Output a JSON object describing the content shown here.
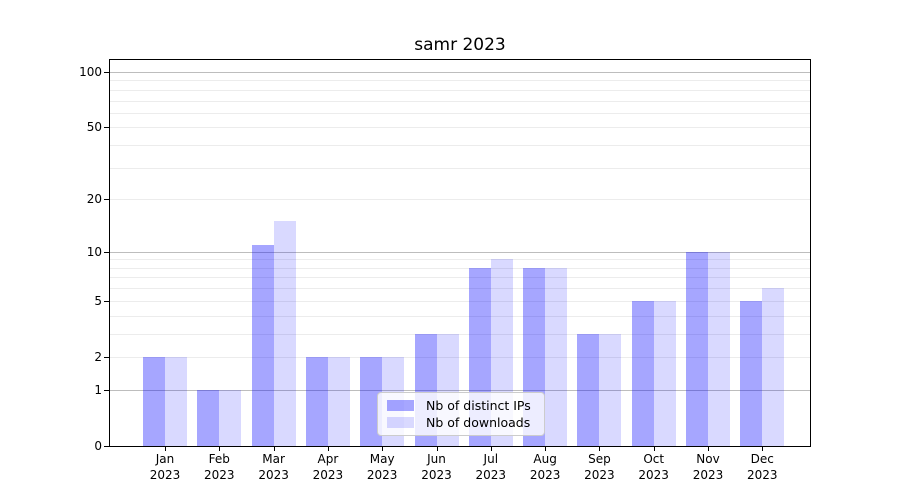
{
  "title": "samr 2023",
  "legend": {
    "items": [
      {
        "label": "Nb of distinct IPs"
      },
      {
        "label": "Nb of downloads"
      }
    ]
  },
  "colors": {
    "bar_distinct_ips": "rgba(0,0,255,0.35)",
    "bar_downloads": "rgba(0,0,255,0.15)",
    "major_grid": "#bdbdbd",
    "minor_grid": "#ececec",
    "spine": "#000000"
  },
  "chart_data": {
    "type": "bar",
    "title": "samr 2023",
    "xlabel": "",
    "ylabel": "",
    "yscale": "log10(1+y)",
    "grid": true,
    "legend_position": "lower center",
    "categories": [
      "Jan 2023",
      "Feb 2023",
      "Mar 2023",
      "Apr 2023",
      "May 2023",
      "Jun 2023",
      "Jul 2023",
      "Aug 2023",
      "Sep 2023",
      "Oct 2023",
      "Nov 2023",
      "Dec 2023"
    ],
    "series": [
      {
        "name": "Nb of distinct IPs",
        "color": "rgba(0,0,255,0.35)",
        "values": [
          2,
          1,
          11,
          2,
          2,
          3,
          8,
          8,
          3,
          5,
          10,
          5
        ]
      },
      {
        "name": "Nb of downloads",
        "color": "rgba(0,0,255,0.15)",
        "values": [
          2,
          1,
          15,
          2,
          2,
          3,
          9,
          8,
          3,
          5,
          10,
          6
        ]
      }
    ],
    "y_tick_labels": [
      0,
      1,
      2,
      5,
      10,
      20,
      50,
      100
    ],
    "y_major_gridlines": [
      1,
      10,
      100
    ],
    "y_minor_gridlines": [
      2,
      3,
      4,
      5,
      6,
      7,
      8,
      9,
      20,
      30,
      40,
      50,
      60,
      70,
      80,
      90
    ],
    "ylim": [
      0,
      116
    ]
  }
}
